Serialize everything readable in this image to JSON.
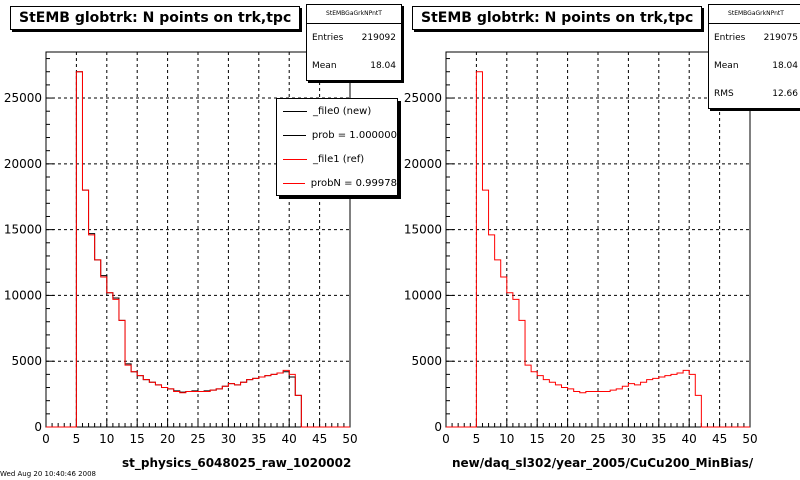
{
  "footer": "Wed Aug 20 10:40:46 2008",
  "chart_data": [
    {
      "type": "step-histogram",
      "title": "StEMB globtrk: N points on trk,tpc",
      "xlabel": "st_physics_6048025_raw_1020002",
      "ylabel": "",
      "xlim": [
        0,
        50
      ],
      "ylim": [
        0,
        28500
      ],
      "x_ticks": [
        0,
        5,
        10,
        15,
        20,
        25,
        30,
        35,
        40,
        45,
        50
      ],
      "y_ticks": [
        0,
        5000,
        10000,
        15000,
        20000,
        25000
      ],
      "bin_edges_start": 5,
      "bin_width": 1,
      "grid": true,
      "stats": {
        "header": "StEMBGaGrkNPntT",
        "entries_label": "Entries",
        "entries": "219092",
        "mean_label": "Mean",
        "mean": "18.04"
      },
      "legend": {
        "placement": "top-right",
        "entries": [
          {
            "label": "_file0 (new)",
            "color": "#000000"
          },
          {
            "label": "prob = 1.000000",
            "color": "#000000"
          },
          {
            "label": "_file1 (ref)",
            "color": "#ff0000"
          },
          {
            "label": "probN = 0.99978",
            "color": "#ff0000"
          }
        ]
      },
      "series": [
        {
          "color": "#000000",
          "values": [
            27000,
            18000,
            14700,
            12700,
            11500,
            10200,
            9800,
            8100,
            4800,
            4200,
            3900,
            3600,
            3400,
            3200,
            3000,
            2900,
            2750,
            2650,
            2700,
            2750,
            2700,
            2750,
            2800,
            2900,
            3100,
            3300,
            3200,
            3400,
            3600,
            3700,
            3800,
            3900,
            4000,
            4100,
            4200,
            3800,
            2400
          ]
        },
        {
          "color": "#ff0000",
          "values": [
            27000,
            18000,
            14600,
            12700,
            11400,
            10200,
            9700,
            8100,
            4700,
            4200,
            3900,
            3600,
            3400,
            3200,
            3000,
            2900,
            2700,
            2600,
            2700,
            2700,
            2700,
            2700,
            2800,
            2900,
            3100,
            3300,
            3200,
            3400,
            3600,
            3700,
            3800,
            3900,
            4000,
            4100,
            4300,
            4000,
            2400
          ]
        }
      ]
    },
    {
      "type": "step-histogram",
      "title": "StEMB globtrk: N points on trk,tpc",
      "xlabel": "new/daq_sl302/year_2005/CuCu200_MinBias/",
      "ylabel": "",
      "xlim": [
        0,
        50
      ],
      "ylim": [
        0,
        28500
      ],
      "x_ticks": [
        0,
        5,
        10,
        15,
        20,
        25,
        30,
        35,
        40,
        45,
        50
      ],
      "y_ticks": [
        0,
        5000,
        10000,
        15000,
        20000,
        25000
      ],
      "bin_edges_start": 5,
      "bin_width": 1,
      "grid": true,
      "stats": {
        "header": "StEMBGaGrkNPntT",
        "entries_label": "Entries",
        "entries": "219075",
        "mean_label": "Mean",
        "mean": "18.04",
        "rms_label": "RMS",
        "rms": "12.66"
      },
      "series": [
        {
          "color": "#ff0000",
          "values": [
            27000,
            18000,
            14600,
            12700,
            11400,
            10200,
            9700,
            8100,
            4700,
            4200,
            3900,
            3600,
            3400,
            3200,
            3000,
            2900,
            2700,
            2600,
            2700,
            2700,
            2700,
            2700,
            2800,
            2900,
            3100,
            3300,
            3200,
            3400,
            3600,
            3700,
            3800,
            3900,
            4000,
            4100,
            4300,
            4000,
            2400
          ]
        }
      ]
    }
  ]
}
